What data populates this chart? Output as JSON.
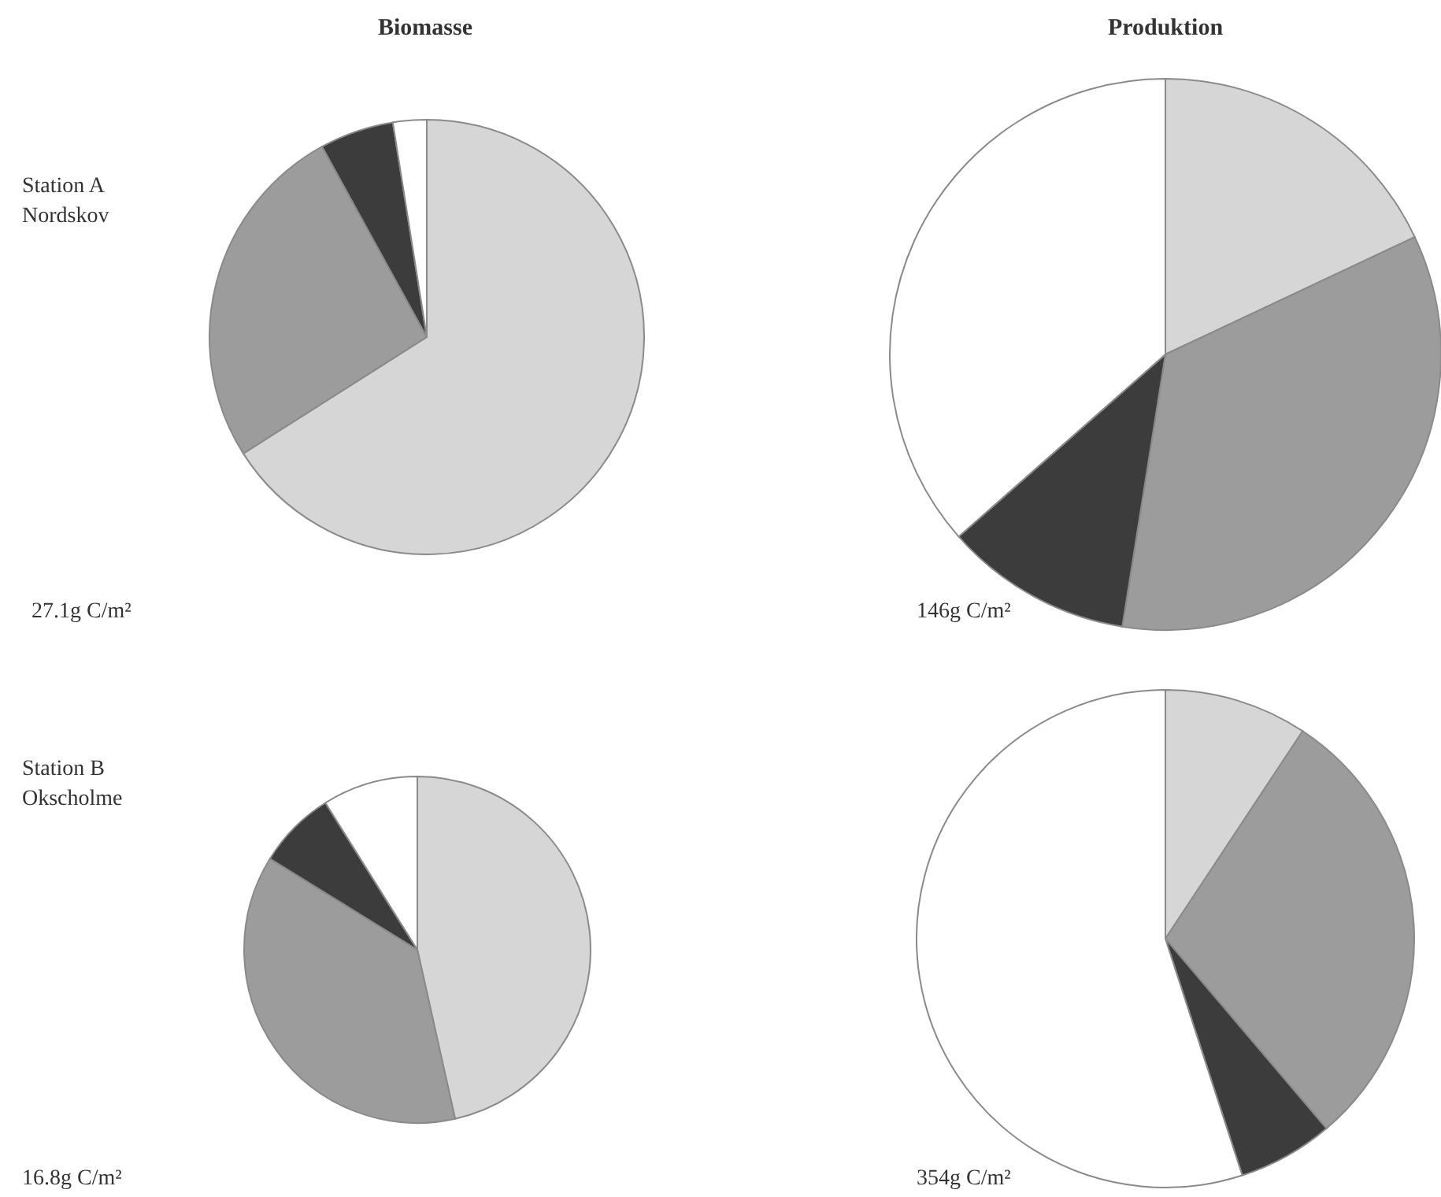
{
  "chart_data": [
    {
      "type": "pie",
      "title": "Biomasse",
      "categories": [
        null,
        null,
        null,
        null
      ],
      "values": [
        66,
        26,
        5.5,
        2.5
      ],
      "colors": [
        "#d6d6d6",
        "#9c9c9c",
        "#3c3c3c",
        "#ffffff"
      ],
      "annotations": [
        "Station A\nNordskov",
        "27.1g C/m²"
      ]
    },
    {
      "type": "pie",
      "title": "Produktion",
      "categories": [
        null,
        null,
        null,
        null
      ],
      "values": [
        18,
        34.5,
        11,
        36.5
      ],
      "colors": [
        "#d6d6d6",
        "#9c9c9c",
        "#3c3c3c",
        "#ffffff"
      ],
      "annotations": [
        "146g C/m²"
      ]
    },
    {
      "type": "pie",
      "categories": [
        null,
        null,
        null,
        null
      ],
      "values": [
        46.5,
        37.3,
        7.3,
        8.9
      ],
      "colors": [
        "#d6d6d6",
        "#9c9c9c",
        "#3c3c3c",
        "#ffffff"
      ],
      "annotations": [
        "Station B\nOkscholme",
        "16.8g C/m²"
      ]
    },
    {
      "type": "pie",
      "categories": [
        null,
        null,
        null,
        null
      ],
      "values": [
        9.3,
        29.5,
        6.2,
        55
      ],
      "colors": [
        "#d6d6d6",
        "#9c9c9c",
        "#3c3c3c",
        "#ffffff"
      ],
      "annotations": [
        "354g C/m²"
      ]
    }
  ]
}
